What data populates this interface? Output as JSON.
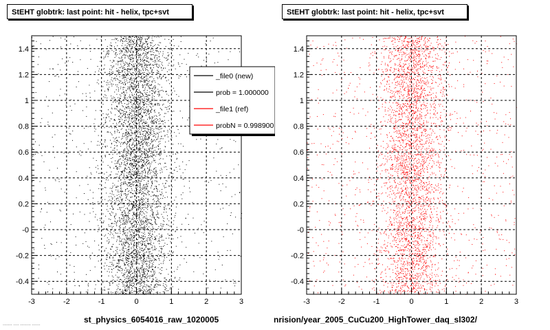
{
  "chart_data": [
    {
      "type": "scatter",
      "title": "StEHT globtrk: last point: hit - helix, tpc+svt",
      "xlabel": "st_physics_6054016_raw_1020005",
      "xlim": [
        -3,
        3
      ],
      "ylim": [
        -0.5,
        1.5
      ],
      "xticks": [
        "-3",
        "-2",
        "-1",
        "0",
        "1",
        "2",
        "3"
      ],
      "yticks": [
        "-0.4",
        "-0.2",
        "-0",
        "0.2",
        "0.4",
        "0.6",
        "0.8",
        "1",
        "1.2",
        "1.4"
      ],
      "grid": true,
      "point_color": "#000000",
      "distribution": {
        "x_center": 0.0,
        "x_spread": 0.45,
        "background_fraction": 0.12,
        "points": 5200
      },
      "legend": {
        "placement": "top-right",
        "entries": [
          {
            "label": "_file0 (new)",
            "color": "#000000"
          },
          {
            "label": "prob = 1.000000",
            "color": "#000000"
          },
          {
            "label": "_file1 (ref)",
            "color": "#ff0000"
          },
          {
            "label": "probN = 0.998900",
            "color": "#ff0000"
          }
        ]
      }
    },
    {
      "type": "scatter",
      "title": "StEHT globtrk: last point: hit - helix, tpc+svt",
      "xlabel": "nrision/year_2005_CuCu200_HighTower_daq_sl302/",
      "xlim": [
        -3,
        3
      ],
      "ylim": [
        -0.5,
        1.5
      ],
      "xticks": [
        "-3",
        "-2",
        "-1",
        "0",
        "1",
        "2",
        "3"
      ],
      "yticks": [
        "-0.4",
        "-0.2",
        "-0",
        "0.2",
        "0.4",
        "0.6",
        "0.8",
        "1",
        "1.2",
        "1.4"
      ],
      "grid": true,
      "point_color": "#ff0000",
      "distribution": {
        "x_center": 0.0,
        "x_spread": 0.45,
        "background_fraction": 0.18,
        "points": 4200
      }
    }
  ],
  "footer": {
    "tiny_text": "....... .... ........ ......"
  }
}
